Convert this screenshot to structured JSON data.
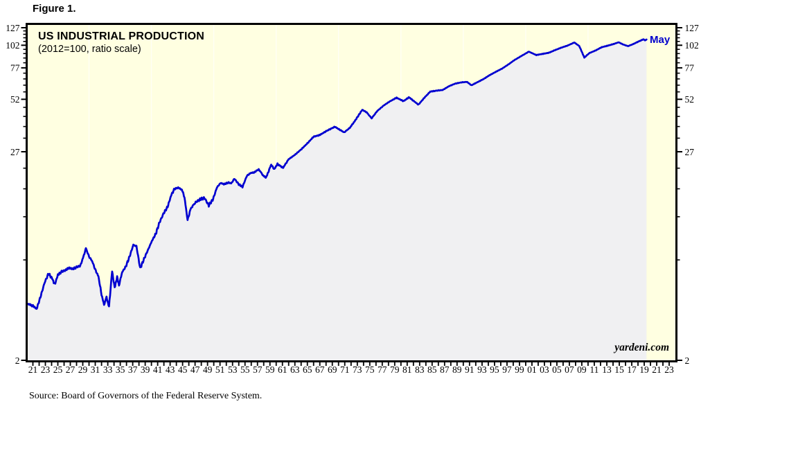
{
  "figure_label": "Figure 1.",
  "chart_data": {
    "type": "area",
    "title": "US INDUSTRIAL PRODUCTION",
    "subtitle": "(2012=100, ratio scale)",
    "watermark": "yardeni.com",
    "source": "Source: Board of Governors of the Federal Reserve System.",
    "y_scale": "log",
    "ylim": [
      2,
      132
    ],
    "x_range_years": [
      1920.2,
      2024
    ],
    "y_major_ticks": [
      2,
      27,
      52,
      77,
      102,
      127
    ],
    "y_minor_ticks": [
      7,
      12,
      17,
      22,
      32,
      37,
      42,
      47,
      57,
      62,
      67,
      72,
      82,
      87,
      92,
      97,
      107,
      112,
      117,
      122
    ],
    "x_label_start_year": 1921,
    "x_label_step_years": 2,
    "x_labels": [
      "21",
      "23",
      "25",
      "27",
      "29",
      "31",
      "33",
      "35",
      "37",
      "39",
      "41",
      "43",
      "45",
      "47",
      "49",
      "51",
      "53",
      "55",
      "57",
      "59",
      "61",
      "63",
      "65",
      "67",
      "69",
      "71",
      "73",
      "75",
      "77",
      "79",
      "81",
      "83",
      "85",
      "87",
      "89",
      "91",
      "93",
      "95",
      "97",
      "99",
      "01",
      "03",
      "05",
      "07",
      "09",
      "11",
      "13",
      "15",
      "17",
      "19",
      "21",
      "23"
    ],
    "decade_gridline_years": [
      1930,
      1940,
      1950,
      1960,
      1970,
      1980,
      1990,
      2000,
      2010
    ],
    "annotations": [
      {
        "text": "May",
        "year": 2019.37,
        "value": 109.6
      }
    ],
    "colors": {
      "plot_background": "#ffffe1",
      "area_fill": "#f0f0f2",
      "line": "#0000d0",
      "annotation": "#0000cc",
      "axis": "#000000",
      "gridline": "rgba(255,255,255,0.65)"
    },
    "series": [
      {
        "name": "US Industrial Production (2012=100)",
        "last_observation": "May 2019",
        "points": [
          [
            1920.2,
            4.05
          ],
          [
            1921.0,
            3.95
          ],
          [
            1921.6,
            3.8
          ],
          [
            1922.2,
            4.4
          ],
          [
            1922.9,
            5.3
          ],
          [
            1923.5,
            5.9
          ],
          [
            1924.1,
            5.55
          ],
          [
            1924.5,
            5.15
          ],
          [
            1925.0,
            5.8
          ],
          [
            1925.6,
            6.05
          ],
          [
            1926.2,
            6.15
          ],
          [
            1926.8,
            6.35
          ],
          [
            1927.4,
            6.25
          ],
          [
            1928.0,
            6.4
          ],
          [
            1928.6,
            6.5
          ],
          [
            1929.1,
            7.3
          ],
          [
            1929.5,
            8.1
          ],
          [
            1930.0,
            7.3
          ],
          [
            1930.5,
            6.9
          ],
          [
            1931.0,
            6.2
          ],
          [
            1931.5,
            5.7
          ],
          [
            1932.0,
            4.55
          ],
          [
            1932.4,
            4.0
          ],
          [
            1932.8,
            4.4
          ],
          [
            1933.2,
            3.9
          ],
          [
            1933.7,
            6.1
          ],
          [
            1934.1,
            4.95
          ],
          [
            1934.5,
            5.65
          ],
          [
            1934.8,
            5.1
          ],
          [
            1935.3,
            6.0
          ],
          [
            1935.9,
            6.45
          ],
          [
            1936.5,
            7.3
          ],
          [
            1937.1,
            8.45
          ],
          [
            1937.6,
            8.3
          ],
          [
            1938.2,
            6.3
          ],
          [
            1938.9,
            7.2
          ],
          [
            1939.5,
            8.0
          ],
          [
            1940.1,
            8.9
          ],
          [
            1940.7,
            9.7
          ],
          [
            1941.3,
            11.2
          ],
          [
            1942.0,
            12.6
          ],
          [
            1942.6,
            13.6
          ],
          [
            1943.2,
            15.8
          ],
          [
            1943.7,
            17.0
          ],
          [
            1944.3,
            17.25
          ],
          [
            1944.9,
            16.8
          ],
          [
            1945.3,
            15.3
          ],
          [
            1945.8,
            11.5
          ],
          [
            1946.3,
            13.3
          ],
          [
            1947.1,
            14.4
          ],
          [
            1947.8,
            14.9
          ],
          [
            1948.5,
            15.2
          ],
          [
            1949.2,
            13.8
          ],
          [
            1949.9,
            15.0
          ],
          [
            1950.5,
            17.3
          ],
          [
            1951.1,
            18.3
          ],
          [
            1951.7,
            18.0
          ],
          [
            1952.3,
            18.4
          ],
          [
            1952.8,
            18.2
          ],
          [
            1953.3,
            19.3
          ],
          [
            1954.0,
            18.0
          ],
          [
            1954.6,
            17.4
          ],
          [
            1955.3,
            20.0
          ],
          [
            1955.9,
            20.7
          ],
          [
            1956.5,
            20.9
          ],
          [
            1957.2,
            21.7
          ],
          [
            1958.0,
            19.9
          ],
          [
            1958.4,
            19.6
          ],
          [
            1959.2,
            23.0
          ],
          [
            1959.7,
            21.7
          ],
          [
            1960.2,
            23.2
          ],
          [
            1961.1,
            22.1
          ],
          [
            1962.0,
            24.6
          ],
          [
            1963.0,
            26.0
          ],
          [
            1964.0,
            27.8
          ],
          [
            1965.0,
            30.0
          ],
          [
            1966.0,
            32.6
          ],
          [
            1967.0,
            33.3
          ],
          [
            1968.0,
            34.9
          ],
          [
            1969.4,
            36.9
          ],
          [
            1970.9,
            34.4
          ],
          [
            1971.8,
            36.4
          ],
          [
            1972.6,
            39.6
          ],
          [
            1973.8,
            45.6
          ],
          [
            1974.5,
            44.2
          ],
          [
            1975.3,
            41.0
          ],
          [
            1976.2,
            44.9
          ],
          [
            1977.2,
            48.0
          ],
          [
            1978.2,
            50.6
          ],
          [
            1979.3,
            53.0
          ],
          [
            1980.4,
            50.8
          ],
          [
            1981.3,
            53.3
          ],
          [
            1982.8,
            48.6
          ],
          [
            1983.8,
            53.2
          ],
          [
            1984.7,
            57.2
          ],
          [
            1985.7,
            57.9
          ],
          [
            1986.7,
            58.4
          ],
          [
            1987.7,
            61.2
          ],
          [
            1988.7,
            63.2
          ],
          [
            1989.7,
            64.2
          ],
          [
            1990.6,
            64.6
          ],
          [
            1991.3,
            61.9
          ],
          [
            1992.2,
            64.2
          ],
          [
            1993.2,
            66.8
          ],
          [
            1994.2,
            70.2
          ],
          [
            1995.2,
            73.2
          ],
          [
            1996.2,
            76.2
          ],
          [
            1997.2,
            80.2
          ],
          [
            1998.2,
            84.8
          ],
          [
            1999.2,
            88.8
          ],
          [
            2000.5,
            94.2
          ],
          [
            2001.7,
            90.3
          ],
          [
            2002.7,
            91.6
          ],
          [
            2003.7,
            92.9
          ],
          [
            2004.7,
            96.0
          ],
          [
            2005.7,
            99.0
          ],
          [
            2006.7,
            101.6
          ],
          [
            2007.8,
            105.6
          ],
          [
            2008.6,
            101.0
          ],
          [
            2009.4,
            87.5
          ],
          [
            2010.2,
            92.5
          ],
          [
            2011.2,
            95.6
          ],
          [
            2012.2,
            99.6
          ],
          [
            2013.2,
            101.6
          ],
          [
            2014.2,
            103.9
          ],
          [
            2014.9,
            105.9
          ],
          [
            2015.6,
            103.1
          ],
          [
            2016.4,
            100.9
          ],
          [
            2017.2,
            103.4
          ],
          [
            2018.0,
            106.6
          ],
          [
            2018.9,
            110.0
          ],
          [
            2019.12,
            108.4
          ],
          [
            2019.37,
            109.6
          ]
        ]
      }
    ]
  }
}
